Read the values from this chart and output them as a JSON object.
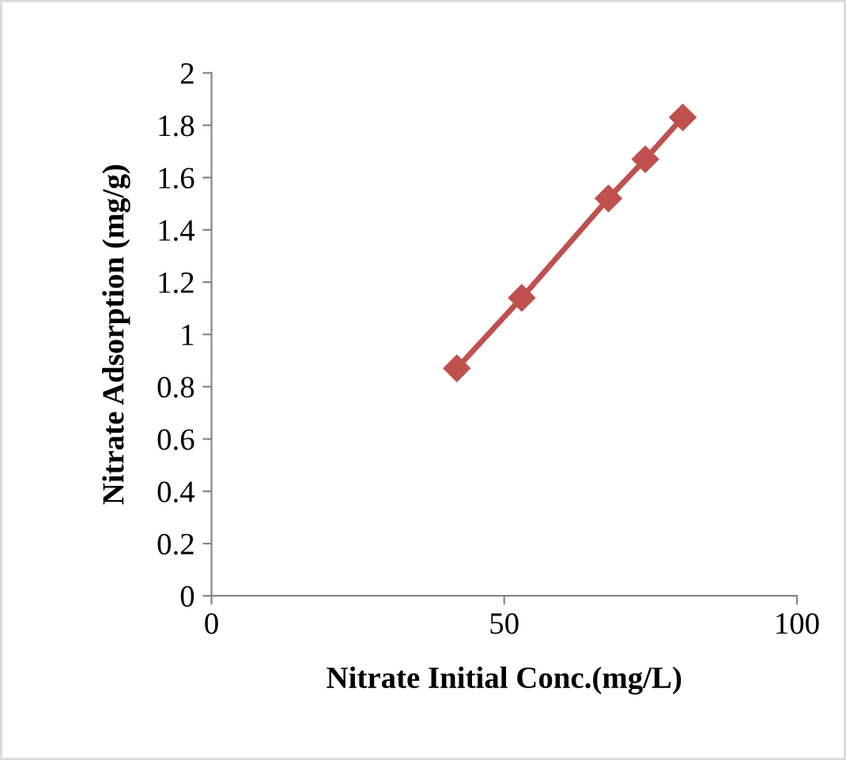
{
  "chart_data": {
    "type": "line",
    "xlabel": "Nitrate Initial Conc.(mg/L)",
    "ylabel": "Nitrate Adsorption (mg/g)",
    "series": [
      {
        "color": "#c0504d",
        "x": [
          41.9,
          53.0,
          67.8,
          74.1,
          80.5
        ],
        "values": [
          0.87,
          1.14,
          1.52,
          1.67,
          1.83
        ]
      }
    ],
    "xlim": [
      0,
      100
    ],
    "xticks": [
      0,
      50,
      100
    ],
    "ylim": [
      0,
      2
    ],
    "yticks": [
      0,
      {
        "value": 0.2,
        "label": "0.2"
      },
      {
        "value": 0.4,
        "label": "0.4"
      },
      {
        "value": 0.6,
        "label": "0.6"
      },
      {
        "value": 0.8,
        "label": "0.8"
      },
      1,
      {
        "value": 1.2,
        "label": "1.2"
      },
      {
        "value": 1.4,
        "label": "1.4"
      },
      {
        "value": 1.6,
        "label": "1.6"
      },
      {
        "value": 1.8,
        "label": "1.8"
      },
      2
    ],
    "grid": false,
    "legend": false,
    "marker": "diamond",
    "line_style": "solid"
  }
}
